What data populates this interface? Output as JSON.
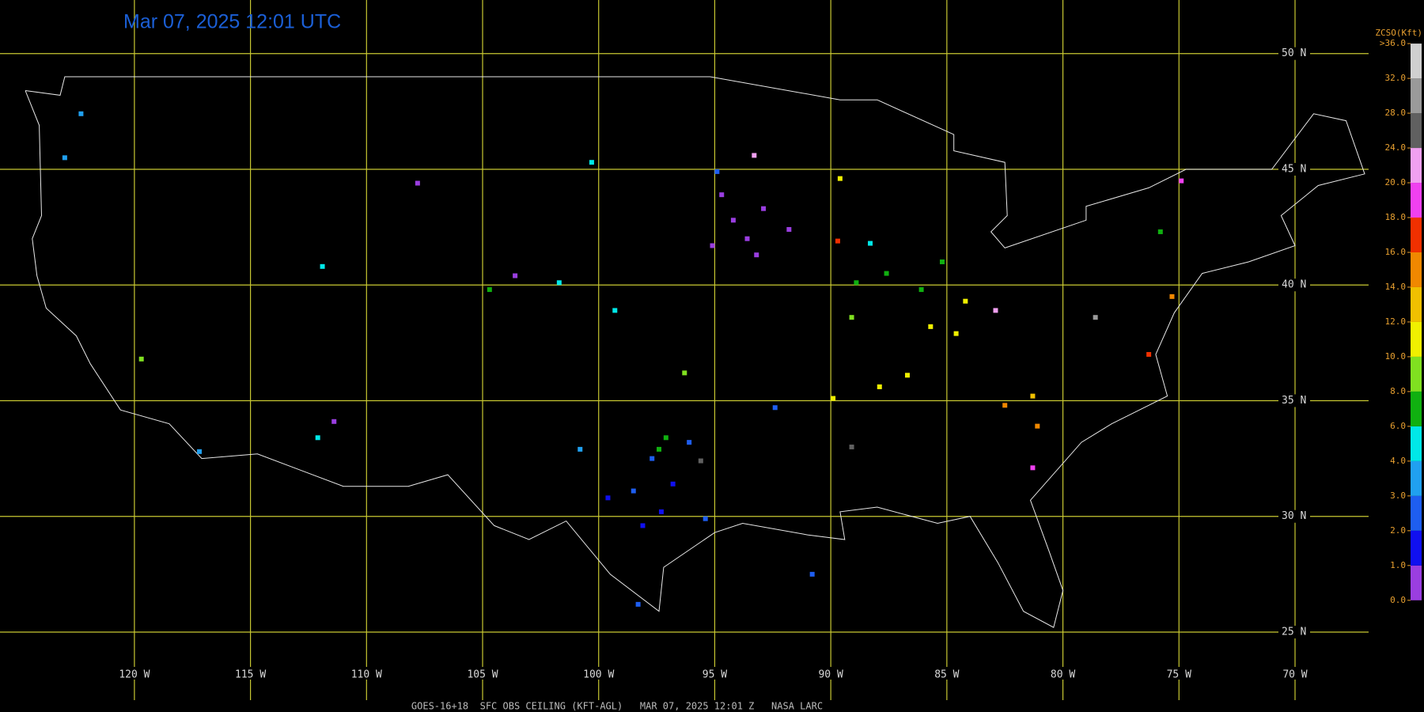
{
  "title": "Mar 07, 2025 12:01 UTC",
  "footer": "GOES-16+18  SFC OBS CEILING (KFT-AGL)   MAR 07, 2025 12:01 Z   NASA LARC",
  "longitudes": [
    {
      "value": -120,
      "label": "120 W"
    },
    {
      "value": -115,
      "label": "115 W"
    },
    {
      "value": -110,
      "label": "110 W"
    },
    {
      "value": -105,
      "label": "105 W"
    },
    {
      "value": -100,
      "label": "100 W"
    },
    {
      "value": -95,
      "label": "95 W"
    },
    {
      "value": -90,
      "label": "90 W"
    },
    {
      "value": -85,
      "label": "85 W"
    },
    {
      "value": -80,
      "label": "80 W"
    },
    {
      "value": -75,
      "label": "75 W"
    },
    {
      "value": -70,
      "label": "70 W"
    }
  ],
  "latitudes": [
    {
      "value": 50,
      "label": "50 N"
    },
    {
      "value": 45,
      "label": "45 N"
    },
    {
      "value": 40,
      "label": "40 N"
    },
    {
      "value": 35,
      "label": "35 N"
    },
    {
      "value": 30,
      "label": "30 N"
    },
    {
      "value": 25,
      "label": "25 N"
    }
  ],
  "colorbar": {
    "title": "ZCSO(Kft)",
    "ticks": [
      {
        "value": 0,
        "label": "0.0"
      },
      {
        "value": 1,
        "label": "1.0"
      },
      {
        "value": 2,
        "label": "2.0"
      },
      {
        "value": 3,
        "label": "3.0"
      },
      {
        "value": 4,
        "label": "4.0"
      },
      {
        "value": 6,
        "label": "6.0"
      },
      {
        "value": 8,
        "label": "8.0"
      },
      {
        "value": 10,
        "label": "10.0"
      },
      {
        "value": 12,
        "label": "12.0"
      },
      {
        "value": 14,
        "label": "14.0"
      },
      {
        "value": 16,
        "label": "16.0"
      },
      {
        "value": 18,
        "label": "18.0"
      },
      {
        "value": 20,
        "label": "20.0"
      },
      {
        "value": 24,
        "label": "24.0"
      },
      {
        "value": 28,
        "label": "28.0"
      },
      {
        "value": 32,
        "label": "32.0"
      },
      {
        "value": 36,
        "label": ">36.0"
      }
    ],
    "colors": [
      "#9a3ee0",
      "#1010f0",
      "#1e5ef0",
      "#20a0f0",
      "#00e8e8",
      "#10b010",
      "#80e020",
      "#f0f000",
      "#f0c000",
      "#f08800",
      "#f03000",
      "#f040f0",
      "#f0a0f0",
      "#606060",
      "#9a9a9a",
      "#d0d0d0"
    ]
  },
  "stations": [
    {
      "lon": -93.6,
      "lat": 42.0,
      "ceiling": 0.5
    },
    {
      "lon": -94.2,
      "lat": 42.8,
      "ceiling": 0.5
    },
    {
      "lon": -92.9,
      "lat": 43.3,
      "ceiling": 0.5
    },
    {
      "lon": -95.1,
      "lat": 41.7,
      "ceiling": 0.5
    },
    {
      "lon": -91.8,
      "lat": 42.4,
      "ceiling": 0.5
    },
    {
      "lon": -93.2,
      "lat": 41.3,
      "ceiling": 0.5
    },
    {
      "lon": -94.7,
      "lat": 43.9,
      "ceiling": 0.5
    },
    {
      "lon": -103.6,
      "lat": 40.4,
      "ceiling": 0.5
    },
    {
      "lon": -107.8,
      "lat": 44.4,
      "ceiling": 0.5
    },
    {
      "lon": -111.4,
      "lat": 34.1,
      "ceiling": 0.5
    },
    {
      "lon": -97.3,
      "lat": 30.2,
      "ceiling": 1.5
    },
    {
      "lon": -98.1,
      "lat": 29.6,
      "ceiling": 1.5
    },
    {
      "lon": -96.8,
      "lat": 31.4,
      "ceiling": 1.5
    },
    {
      "lon": -99.6,
      "lat": 30.8,
      "ceiling": 1.5
    },
    {
      "lon": -95.4,
      "lat": 29.9,
      "ceiling": 2.5
    },
    {
      "lon": -97.7,
      "lat": 32.5,
      "ceiling": 2.5
    },
    {
      "lon": -98.5,
      "lat": 31.1,
      "ceiling": 2.5
    },
    {
      "lon": -96.1,
      "lat": 33.2,
      "ceiling": 2.5
    },
    {
      "lon": -98.3,
      "lat": 26.2,
      "ceiling": 2.5
    },
    {
      "lon": -94.9,
      "lat": 44.9,
      "ceiling": 2.5
    },
    {
      "lon": -92.4,
      "lat": 34.7,
      "ceiling": 2.5
    },
    {
      "lon": -90.8,
      "lat": 27.5,
      "ceiling": 2.5
    },
    {
      "lon": -122.3,
      "lat": 47.4,
      "ceiling": 3.5
    },
    {
      "lon": -123.0,
      "lat": 45.5,
      "ceiling": 3.5
    },
    {
      "lon": -117.2,
      "lat": 32.8,
      "ceiling": 3.5
    },
    {
      "lon": -100.8,
      "lat": 32.9,
      "ceiling": 3.5
    },
    {
      "lon": -101.7,
      "lat": 40.1,
      "ceiling": 5.0
    },
    {
      "lon": -99.3,
      "lat": 38.9,
      "ceiling": 5.0
    },
    {
      "lon": -112.1,
      "lat": 33.4,
      "ceiling": 5.0
    },
    {
      "lon": -111.9,
      "lat": 40.8,
      "ceiling": 5.0
    },
    {
      "lon": -100.3,
      "lat": 45.3,
      "ceiling": 5.0
    },
    {
      "lon": -88.3,
      "lat": 41.8,
      "ceiling": 5.0
    },
    {
      "lon": -86.1,
      "lat": 39.8,
      "ceiling": 7.0
    },
    {
      "lon": -87.6,
      "lat": 40.5,
      "ceiling": 7.0
    },
    {
      "lon": -88.9,
      "lat": 40.1,
      "ceiling": 7.0
    },
    {
      "lon": -85.2,
      "lat": 41.0,
      "ceiling": 7.0
    },
    {
      "lon": -97.4,
      "lat": 32.9,
      "ceiling": 7.0
    },
    {
      "lon": -97.1,
      "lat": 33.4,
      "ceiling": 7.0
    },
    {
      "lon": -104.7,
      "lat": 39.8,
      "ceiling": 7.0
    },
    {
      "lon": -75.8,
      "lat": 42.3,
      "ceiling": 7.0
    },
    {
      "lon": -119.7,
      "lat": 36.8,
      "ceiling": 9.0
    },
    {
      "lon": -89.1,
      "lat": 38.6,
      "ceiling": 9.0
    },
    {
      "lon": -96.3,
      "lat": 36.2,
      "ceiling": 9.0
    },
    {
      "lon": -86.7,
      "lat": 36.1,
      "ceiling": 11.0
    },
    {
      "lon": -85.7,
      "lat": 38.2,
      "ceiling": 11.0
    },
    {
      "lon": -84.6,
      "lat": 37.9,
      "ceiling": 11.0
    },
    {
      "lon": -87.9,
      "lat": 35.6,
      "ceiling": 11.0
    },
    {
      "lon": -89.9,
      "lat": 35.1,
      "ceiling": 11.0
    },
    {
      "lon": -84.2,
      "lat": 39.3,
      "ceiling": 11.0
    },
    {
      "lon": -89.6,
      "lat": 44.6,
      "ceiling": 11.0
    },
    {
      "lon": -81.3,
      "lat": 35.2,
      "ceiling": 13.0
    },
    {
      "lon": -82.5,
      "lat": 34.8,
      "ceiling": 15.0
    },
    {
      "lon": -81.1,
      "lat": 33.9,
      "ceiling": 15.0
    },
    {
      "lon": -75.3,
      "lat": 39.5,
      "ceiling": 15.0
    },
    {
      "lon": -76.3,
      "lat": 37.0,
      "ceiling": 17.0
    },
    {
      "lon": -89.7,
      "lat": 41.9,
      "ceiling": 17.0
    },
    {
      "lon": -81.3,
      "lat": 32.1,
      "ceiling": 19.0
    },
    {
      "lon": -74.9,
      "lat": 44.5,
      "ceiling": 19.0
    },
    {
      "lon": -93.3,
      "lat": 45.6,
      "ceiling": 22.0
    },
    {
      "lon": -82.9,
      "lat": 38.9,
      "ceiling": 22.0
    },
    {
      "lon": -89.1,
      "lat": 33.0,
      "ceiling": 26.0
    },
    {
      "lon": -95.6,
      "lat": 32.4,
      "ceiling": 26.0
    },
    {
      "lon": -78.6,
      "lat": 38.6,
      "ceiling": 30.0
    }
  ]
}
